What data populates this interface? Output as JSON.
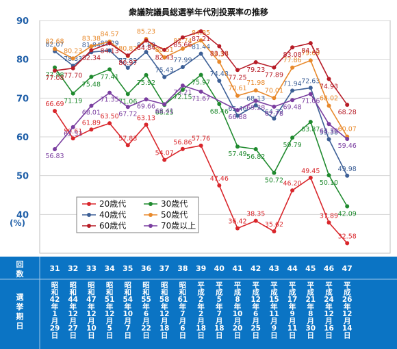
{
  "chart_data": {
    "type": "line",
    "title": "衆議院議員総選挙年代別投票率の推移",
    "ylabel": "(%)",
    "ylim": [
      30,
      90
    ],
    "yticks": [
      40,
      50,
      60,
      70,
      80,
      90
    ],
    "grid": true,
    "legend_position": "bottom-left",
    "row_label_count": "回数",
    "row_label_date": "選挙期日",
    "elections": [
      "31",
      "32",
      "33",
      "34",
      "35",
      "36",
      "37",
      "38",
      "39",
      "40",
      "41",
      "42",
      "43",
      "44",
      "45",
      "46",
      "47"
    ],
    "dates": [
      "昭和42年1月29日",
      "昭和44年12月27日",
      "昭和47年12月10日",
      "昭和51年12月5日",
      "昭和54年10月7日",
      "昭和55年6月22日",
      "昭和58年12月18日",
      "昭和61年7月6日",
      "平成2年2月18日",
      "平成5年7月18日",
      "平成8年10月20日",
      "平成12年6月25日",
      "平成15年11月9日",
      "平成17年9月11日",
      "平成21年8月30日",
      "平成24年12月16日",
      "平成26年12月14日"
    ],
    "series": [
      {
        "name": "20歳代",
        "color": "#d9262b",
        "labels": [
          "66.69",
          "59.61",
          "61.89",
          "63.50",
          "57.83",
          "63.13",
          "54.07",
          "56.86",
          "57.76",
          "47.46",
          "36.42",
          "38.35",
          "35.62",
          "46.20",
          "49.45",
          "37.89",
          "32.58"
        ],
        "values": [
          66.69,
          59.61,
          61.89,
          63.5,
          57.83,
          63.13,
          54.07,
          56.86,
          57.76,
          47.46,
          36.42,
          38.35,
          35.62,
          46.2,
          49.45,
          37.89,
          32.58
        ]
      },
      {
        "name": "30歳代",
        "color": "#1f8a2e",
        "labels": [
          "77.88",
          "71.19",
          "75.48",
          "77.41",
          "71.06",
          "75.92",
          "68.25",
          "72.15",
          "75.97",
          "68.46",
          "57.49",
          "56.82",
          "50.72",
          "59.79",
          "63.87",
          "50.10",
          "42.09"
        ],
        "values": [
          77.88,
          71.19,
          75.48,
          77.41,
          71.06,
          75.92,
          68.25,
          72.15,
          75.97,
          68.46,
          57.49,
          56.82,
          50.72,
          59.79,
          63.87,
          50.1,
          42.09
        ]
      },
      {
        "name": "40歳代",
        "color": "#3c5f96",
        "labels": [
          "82.07",
          "78.33",
          "81.84",
          "82.29",
          "77.82",
          "81.88",
          "75.43",
          "77.99",
          "81.44",
          "74.48",
          "65.46",
          "68.13",
          "64.72",
          "71.94",
          "72.63",
          "59.38",
          "49.98"
        ],
        "values": [
          82.07,
          78.33,
          81.84,
          82.29,
          77.82,
          81.88,
          75.43,
          77.99,
          81.44,
          74.48,
          65.46,
          68.13,
          64.72,
          71.94,
          72.63,
          59.38,
          49.98
        ]
      },
      {
        "name": "50歳代",
        "color": "#e8892b",
        "labels": [
          "82.68",
          "80.23",
          "83.38",
          "84.57",
          "80.82",
          "85.23",
          "80.51",
          "82.74",
          "84.85",
          "79.34",
          "70.61",
          "71.98",
          "70.01",
          "77.86",
          "79.69",
          "68.02",
          "60.07"
        ],
        "values": [
          82.68,
          80.23,
          83.38,
          84.57,
          80.82,
          85.23,
          80.51,
          82.74,
          84.85,
          79.34,
          70.61,
          71.98,
          70.01,
          77.86,
          79.69,
          68.02,
          60.07
        ]
      },
      {
        "name": "60歳代",
        "color": "#b71c27",
        "labels": [
          "77.08",
          "77.70",
          "82.34",
          "84.13",
          "80.97",
          "84.84",
          "82.43",
          "85.66",
          "87.21",
          "83.38",
          "77.25",
          "79.23",
          "77.89",
          "83.08",
          "84.15",
          "74.93",
          "68.28"
        ],
        "values": [
          77.08,
          77.7,
          82.34,
          84.13,
          80.97,
          84.84,
          82.43,
          85.66,
          87.21,
          83.38,
          77.25,
          79.23,
          77.89,
          83.08,
          84.15,
          74.93,
          68.28
        ]
      },
      {
        "name": "70歳以上",
        "color": "#7a3ea0",
        "labels": [
          "56.83",
          "62.52",
          "68.01",
          "71.35",
          "67.72",
          "69.66",
          "68.41",
          "73.21",
          "71.67",
          "",
          "66.88",
          "69.28",
          "67.78",
          "69.48",
          "71.06",
          "63.30",
          "59.46"
        ],
        "values": [
          56.83,
          62.52,
          68.01,
          71.35,
          67.72,
          69.66,
          68.41,
          73.21,
          71.67,
          null,
          66.88,
          69.28,
          67.78,
          69.48,
          71.06,
          63.3,
          59.46
        ]
      }
    ]
  }
}
